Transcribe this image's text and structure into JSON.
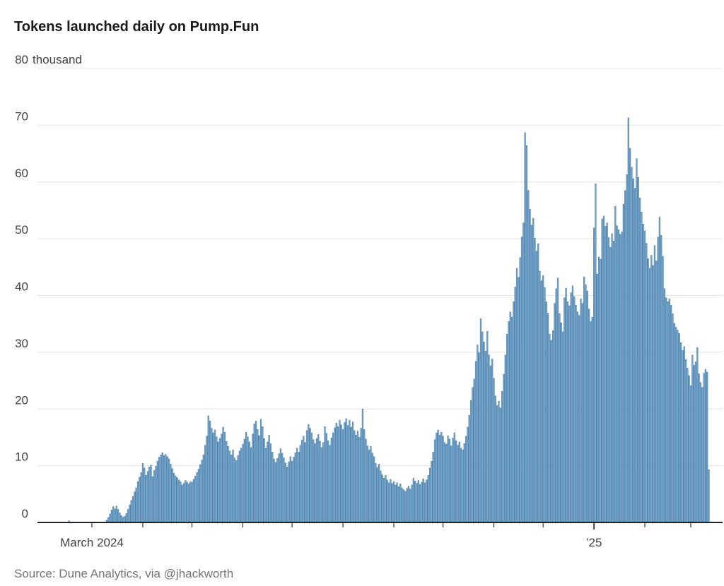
{
  "chart_data": {
    "type": "bar",
    "title": "Tokens launched daily on Pump.Fun",
    "source": "Source: Dune Analytics, via @jhackworth",
    "unit_label": "thousand",
    "ylim": [
      0,
      80
    ],
    "grid": "horizontal",
    "legend": "none",
    "y_ticks": [
      {
        "value": 0,
        "label": "0",
        "suffix": ""
      },
      {
        "value": 10,
        "label": "10",
        "suffix": ""
      },
      {
        "value": 20,
        "label": "20",
        "suffix": ""
      },
      {
        "value": 30,
        "label": "30",
        "suffix": ""
      },
      {
        "value": 40,
        "label": "40",
        "suffix": ""
      },
      {
        "value": 50,
        "label": "50",
        "suffix": ""
      },
      {
        "value": 60,
        "label": "60",
        "suffix": ""
      },
      {
        "value": 70,
        "label": "70",
        "suffix": ""
      },
      {
        "value": 80,
        "label": "80",
        "suffix": "thousand"
      }
    ],
    "x_month_ticks": [
      {
        "label": "March 2024",
        "day_offset": 0
      },
      {
        "label": "",
        "day_offset": 31
      },
      {
        "label": "",
        "day_offset": 61
      },
      {
        "label": "",
        "day_offset": 92
      },
      {
        "label": "",
        "day_offset": 122
      },
      {
        "label": "",
        "day_offset": 153
      },
      {
        "label": "",
        "day_offset": 184
      },
      {
        "label": "",
        "day_offset": 214
      },
      {
        "label": "",
        "day_offset": 245
      },
      {
        "label": "",
        "day_offset": 275
      },
      {
        "label": "’25",
        "day_offset": 306,
        "year_tick": true
      },
      {
        "label": "",
        "day_offset": 337
      },
      {
        "label": "",
        "day_offset": 365
      }
    ],
    "series": [
      {
        "name": "Tokens launched daily (thousands)",
        "start_date": "2024-02-16",
        "start_day_offset": -14,
        "values": [
          0.3,
          null,
          null,
          null,
          null,
          null,
          null,
          null,
          null,
          null,
          null,
          null,
          null,
          null,
          null,
          null,
          null,
          null,
          null,
          null,
          null,
          null,
          null,
          0.4,
          0.9,
          1.5,
          2.2,
          2.8,
          2.4,
          2.9,
          2.3,
          1.7,
          1.2,
          0.9,
          1.1,
          1.6,
          2.3,
          3.1,
          3.9,
          4.6,
          5.4,
          6.1,
          7.2,
          8.0,
          8.8,
          10.4,
          9.6,
          8.3,
          9.0,
          9.8,
          10.1,
          8.1,
          9.2,
          9.9,
          10.8,
          11.5,
          11.9,
          12.3,
          11.8,
          12.0,
          11.6,
          11.2,
          10.3,
          9.5,
          8.7,
          8.2,
          7.9,
          7.5,
          7.2,
          6.6,
          6.9,
          7.4,
          7.1,
          6.8,
          7.2,
          7.1,
          7.6,
          8.2,
          8.8,
          9.4,
          10.2,
          11.0,
          11.9,
          13.6,
          15.2,
          18.8,
          17.9,
          16.6,
          15.8,
          16.3,
          15.1,
          14.2,
          14.8,
          15.6,
          16.8,
          15.9,
          14.3,
          13.4,
          12.6,
          11.9,
          12.8,
          11.4,
          10.9,
          11.8,
          12.6,
          13.1,
          13.8,
          14.7,
          15.9,
          15.1,
          14.2,
          13.2,
          15.6,
          17.4,
          17.9,
          16.4,
          15.3,
          18.2,
          16.9,
          14.8,
          13.1,
          14.2,
          15.4,
          13.9,
          12.4,
          11.2,
          10.6,
          11.3,
          12.1,
          13.0,
          12.2,
          11.4,
          10.5,
          9.8,
          10.7,
          11.6,
          10.8,
          11.5,
          12.3,
          13.1,
          12.4,
          13.6,
          14.5,
          15.2,
          14.1,
          16.2,
          17.3,
          16.6,
          15.8,
          14.6,
          13.9,
          14.8,
          15.5,
          14.3,
          13.2,
          14.1,
          16.9,
          15.7,
          14.4,
          13.6,
          14.9,
          15.8,
          16.7,
          17.5,
          16.9,
          18.0,
          17.2,
          16.4,
          17.6,
          18.3,
          17.1,
          18.0,
          16.8,
          17.7,
          16.2,
          15.4,
          16.1,
          15.0,
          16.6,
          20.0,
          16.4,
          14.7,
          13.5,
          12.8,
          13.4,
          12.2,
          11.6,
          10.4,
          9.7,
          10.3,
          9.1,
          8.4,
          7.8,
          8.3,
          7.5,
          7.0,
          7.6,
          6.9,
          7.2,
          6.6,
          7.0,
          6.3,
          6.8,
          6.1,
          5.8,
          5.5,
          6.0,
          6.4,
          5.9,
          6.6,
          7.8,
          7.3,
          6.9,
          7.4,
          6.7,
          7.1,
          7.7,
          7.0,
          7.5,
          8.3,
          9.6,
          10.8,
          12.4,
          14.6,
          15.8,
          16.3,
          15.4,
          15.9,
          15.2,
          14.1,
          13.8,
          15.3,
          14.7,
          13.5,
          14.9,
          15.8,
          14.4,
          13.6,
          14.2,
          13.1,
          12.8,
          13.9,
          15.2,
          16.8,
          18.9,
          21.5,
          23.8,
          25.3,
          28.4,
          31.3,
          29.9,
          35.9,
          33.6,
          31.8,
          30.2,
          33.7,
          29.5,
          27.6,
          28.8,
          25.4,
          22.3,
          20.6,
          21.4,
          20.2,
          23.1,
          26.1,
          29.5,
          33.2,
          35.4,
          37.1,
          36.2,
          38.9,
          41.5,
          44.8,
          43.2,
          46.7,
          50.3,
          52.8,
          68.7,
          66.4,
          58.5,
          55.2,
          52.4,
          53.6,
          50.1,
          47.8,
          49.1,
          44.3,
          42.6,
          43.5,
          41.4,
          38.9,
          36.9,
          33.2,
          32.1,
          33.8,
          38.6,
          41.2,
          43.1,
          36.8,
          35.2,
          33.6,
          39.6,
          41.3,
          38.9,
          38.2,
          40.5,
          41.7,
          39.8,
          38.3,
          37.1,
          36.5,
          39.4,
          38.6,
          43.3,
          41.9,
          40.8,
          37.6,
          35.4,
          36.2,
          51.9,
          59.7,
          43.8,
          46.8,
          46.4,
          53.5,
          54.0,
          52.2,
          52.8,
          50.2,
          48.5,
          50.9,
          49.6,
          55.7,
          52.3,
          51.6,
          50.8,
          51.2,
          56.1,
          58.5,
          61.3,
          71.3,
          65.9,
          62.6,
          60.6,
          58.9,
          64.1,
          60.8,
          57.2,
          54.7,
          52.6,
          51.4,
          49.2,
          46.5,
          44.8,
          47.1,
          45.3,
          48.8,
          46.1,
          50.3,
          53.8,
          50.6,
          46.9,
          41.2,
          39.6,
          38.9,
          39.4,
          38.3,
          36.8,
          35.1,
          34.4,
          33.9,
          33.3,
          31.7,
          30.3,
          31.0,
          28.7,
          27.2,
          25.9,
          24.1,
          29.5,
          27.7,
          28.3,
          30.8,
          26.2,
          24.7,
          23.8,
          26.3,
          27.0,
          26.5,
          9.3
        ]
      }
    ],
    "colors": {
      "bar_fill": "#73a5cb",
      "bar_edge": "#3f74a3",
      "grid": "#e4e4e4",
      "axis_line": "#222222",
      "tick_text": "#414141",
      "title_text": "#1b1b1b",
      "source_text": "#757575"
    }
  }
}
